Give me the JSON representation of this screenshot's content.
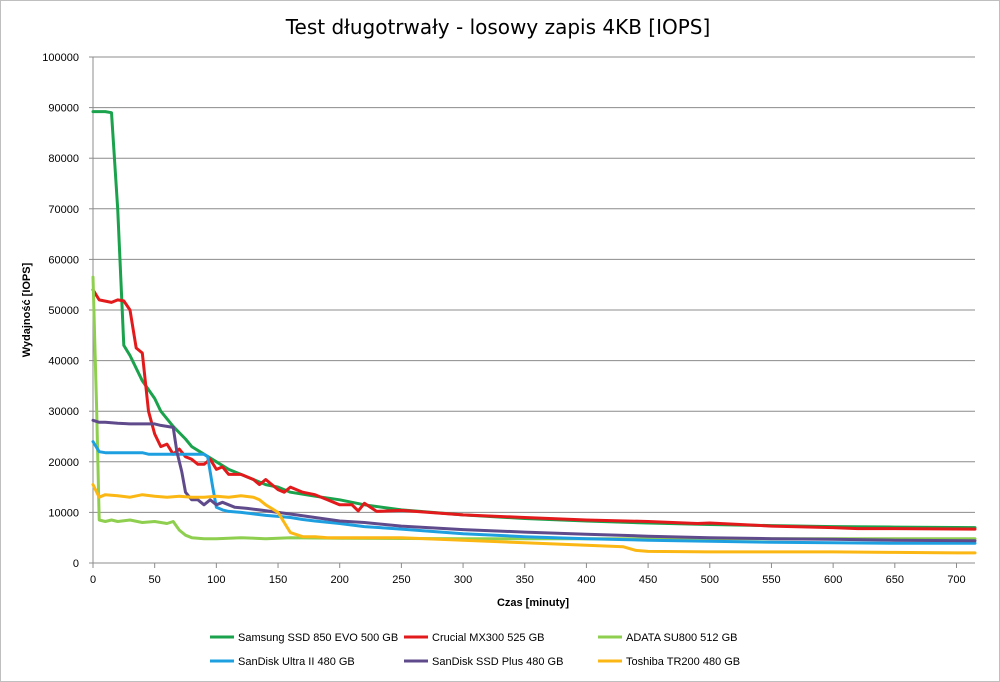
{
  "chart_data": {
    "type": "line",
    "title": "Test długotrwały - losowy zapis 4KB [IOPS]",
    "xlabel": "Czas [minuty]",
    "ylabel": "Wydajność [IOPS]",
    "xlim": [
      0,
      715
    ],
    "ylim": [
      0,
      100000
    ],
    "x_ticks": [
      0,
      50,
      100,
      150,
      200,
      250,
      300,
      350,
      400,
      450,
      500,
      550,
      600,
      650,
      700
    ],
    "y_ticks": [
      0,
      10000,
      20000,
      30000,
      40000,
      50000,
      60000,
      70000,
      80000,
      90000,
      100000
    ],
    "grid": "horizontal",
    "legend_position": "bottom",
    "series": [
      {
        "name": "Samsung SSD 850 EVO 500 GB",
        "color": "#1ba24c",
        "points": [
          [
            0,
            89200
          ],
          [
            10,
            89200
          ],
          [
            15,
            89000
          ],
          [
            20,
            70000
          ],
          [
            25,
            43000
          ],
          [
            30,
            41000
          ],
          [
            40,
            36000
          ],
          [
            50,
            32500
          ],
          [
            55,
            30000
          ],
          [
            65,
            27000
          ],
          [
            75,
            24500
          ],
          [
            80,
            23000
          ],
          [
            90,
            21500
          ],
          [
            100,
            20000
          ],
          [
            110,
            18500
          ],
          [
            120,
            17500
          ],
          [
            130,
            16500
          ],
          [
            140,
            15500
          ],
          [
            150,
            15000
          ],
          [
            160,
            14000
          ],
          [
            180,
            13200
          ],
          [
            200,
            12500
          ],
          [
            220,
            11500
          ],
          [
            250,
            10500
          ],
          [
            300,
            9500
          ],
          [
            350,
            8800
          ],
          [
            400,
            8300
          ],
          [
            450,
            7900
          ],
          [
            500,
            7600
          ],
          [
            550,
            7400
          ],
          [
            600,
            7200
          ],
          [
            650,
            7100
          ],
          [
            715,
            7000
          ]
        ]
      },
      {
        "name": "Crucial MX300 525 GB",
        "color": "#e31a1c",
        "points": [
          [
            0,
            54000
          ],
          [
            5,
            52000
          ],
          [
            15,
            51500
          ],
          [
            20,
            52000
          ],
          [
            25,
            51800
          ],
          [
            30,
            50000
          ],
          [
            35,
            42500
          ],
          [
            40,
            41500
          ],
          [
            45,
            30000
          ],
          [
            50,
            25500
          ],
          [
            55,
            23000
          ],
          [
            60,
            23500
          ],
          [
            65,
            21500
          ],
          [
            70,
            22500
          ],
          [
            75,
            21000
          ],
          [
            80,
            20500
          ],
          [
            85,
            19500
          ],
          [
            90,
            19500
          ],
          [
            95,
            20500
          ],
          [
            100,
            18500
          ],
          [
            105,
            19000
          ],
          [
            110,
            17500
          ],
          [
            120,
            17500
          ],
          [
            130,
            16500
          ],
          [
            135,
            15500
          ],
          [
            140,
            16500
          ],
          [
            150,
            14500
          ],
          [
            155,
            14000
          ],
          [
            160,
            15000
          ],
          [
            170,
            14000
          ],
          [
            180,
            13500
          ],
          [
            190,
            12500
          ],
          [
            200,
            11500
          ],
          [
            210,
            11500
          ],
          [
            215,
            10300
          ],
          [
            220,
            11800
          ],
          [
            230,
            10200
          ],
          [
            240,
            10300
          ],
          [
            250,
            10400
          ],
          [
            300,
            9500
          ],
          [
            350,
            9000
          ],
          [
            400,
            8500
          ],
          [
            450,
            8200
          ],
          [
            490,
            7800
          ],
          [
            500,
            7900
          ],
          [
            550,
            7300
          ],
          [
            600,
            7000
          ],
          [
            620,
            6800
          ],
          [
            650,
            6800
          ],
          [
            715,
            6700
          ]
        ]
      },
      {
        "name": "ADATA SU800 512 GB",
        "color": "#8fcf4f",
        "points": [
          [
            0,
            56500
          ],
          [
            3,
            30000
          ],
          [
            5,
            8500
          ],
          [
            10,
            8200
          ],
          [
            15,
            8500
          ],
          [
            20,
            8200
          ],
          [
            30,
            8500
          ],
          [
            40,
            8000
          ],
          [
            50,
            8200
          ],
          [
            60,
            7800
          ],
          [
            65,
            8200
          ],
          [
            70,
            6500
          ],
          [
            75,
            5500
          ],
          [
            80,
            5000
          ],
          [
            90,
            4800
          ],
          [
            100,
            4800
          ],
          [
            120,
            5000
          ],
          [
            140,
            4800
          ],
          [
            160,
            5000
          ],
          [
            200,
            4900
          ],
          [
            300,
            4800
          ],
          [
            400,
            4800
          ],
          [
            500,
            4800
          ],
          [
            600,
            4800
          ],
          [
            715,
            4800
          ]
        ]
      },
      {
        "name": "SanDisk Ultra II 480 GB",
        "color": "#1ea0e0",
        "points": [
          [
            0,
            24000
          ],
          [
            5,
            22000
          ],
          [
            10,
            21800
          ],
          [
            40,
            21800
          ],
          [
            45,
            21500
          ],
          [
            90,
            21500
          ],
          [
            93,
            21000
          ],
          [
            97,
            15000
          ],
          [
            100,
            11000
          ],
          [
            105,
            10500
          ],
          [
            110,
            10200
          ],
          [
            120,
            10000
          ],
          [
            130,
            9700
          ],
          [
            140,
            9400
          ],
          [
            150,
            9200
          ],
          [
            160,
            9000
          ],
          [
            170,
            8600
          ],
          [
            180,
            8300
          ],
          [
            200,
            7800
          ],
          [
            220,
            7200
          ],
          [
            250,
            6700
          ],
          [
            300,
            5800
          ],
          [
            350,
            5200
          ],
          [
            400,
            4800
          ],
          [
            450,
            4500
          ],
          [
            500,
            4300
          ],
          [
            550,
            4100
          ],
          [
            600,
            4000
          ],
          [
            650,
            3900
          ],
          [
            715,
            3900
          ]
        ]
      },
      {
        "name": "SanDisk SSD Plus 480 GB",
        "color": "#5f4b8b",
        "points": [
          [
            0,
            28200
          ],
          [
            5,
            27800
          ],
          [
            10,
            27800
          ],
          [
            20,
            27600
          ],
          [
            30,
            27500
          ],
          [
            40,
            27500
          ],
          [
            50,
            27500
          ],
          [
            55,
            27200
          ],
          [
            60,
            27000
          ],
          [
            65,
            26800
          ],
          [
            68,
            22000
          ],
          [
            72,
            18000
          ],
          [
            75,
            14000
          ],
          [
            80,
            12500
          ],
          [
            85,
            12500
          ],
          [
            90,
            11500
          ],
          [
            95,
            12500
          ],
          [
            100,
            11500
          ],
          [
            105,
            12000
          ],
          [
            110,
            11500
          ],
          [
            115,
            11000
          ],
          [
            125,
            10800
          ],
          [
            135,
            10500
          ],
          [
            150,
            10000
          ],
          [
            165,
            9500
          ],
          [
            180,
            9000
          ],
          [
            200,
            8300
          ],
          [
            220,
            8000
          ],
          [
            250,
            7300
          ],
          [
            300,
            6600
          ],
          [
            350,
            6100
          ],
          [
            400,
            5700
          ],
          [
            450,
            5300
          ],
          [
            500,
            5000
          ],
          [
            550,
            4800
          ],
          [
            600,
            4700
          ],
          [
            650,
            4500
          ],
          [
            715,
            4400
          ]
        ]
      },
      {
        "name": "Toshiba TR200 480 GB",
        "color": "#fbb714",
        "points": [
          [
            0,
            15500
          ],
          [
            5,
            13000
          ],
          [
            10,
            13500
          ],
          [
            20,
            13300
          ],
          [
            30,
            13000
          ],
          [
            40,
            13500
          ],
          [
            50,
            13200
          ],
          [
            60,
            13000
          ],
          [
            70,
            13200
          ],
          [
            80,
            13000
          ],
          [
            90,
            13000
          ],
          [
            100,
            13200
          ],
          [
            110,
            13000
          ],
          [
            120,
            13300
          ],
          [
            130,
            13000
          ],
          [
            135,
            12500
          ],
          [
            140,
            11500
          ],
          [
            150,
            10000
          ],
          [
            155,
            8000
          ],
          [
            160,
            6000
          ],
          [
            170,
            5200
          ],
          [
            180,
            5200
          ],
          [
            190,
            5000
          ],
          [
            200,
            5000
          ],
          [
            250,
            5000
          ],
          [
            300,
            4500
          ],
          [
            350,
            4000
          ],
          [
            400,
            3500
          ],
          [
            430,
            3200
          ],
          [
            440,
            2500
          ],
          [
            450,
            2300
          ],
          [
            500,
            2200
          ],
          [
            550,
            2200
          ],
          [
            600,
            2200
          ],
          [
            650,
            2100
          ],
          [
            700,
            2000
          ],
          [
            715,
            2000
          ]
        ]
      }
    ]
  }
}
